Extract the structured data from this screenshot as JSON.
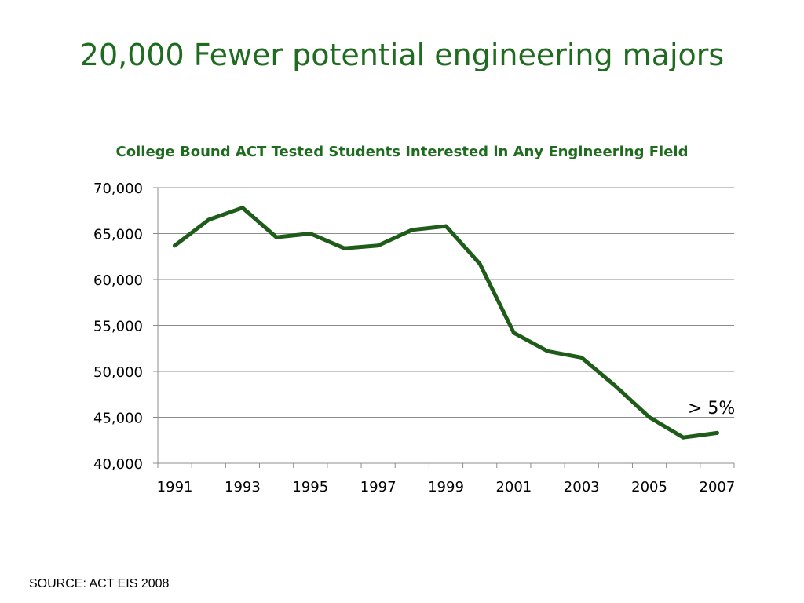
{
  "slide": {
    "title": "20,000 Fewer potential engineering majors",
    "source": "SOURCE: ACT EIS 2008"
  },
  "chart_data": {
    "type": "line",
    "title": "College Bound ACT Tested Students Interested in Any Engineering Field",
    "xlabel": "",
    "ylabel": "",
    "x": [
      1991,
      1992,
      1993,
      1994,
      1995,
      1996,
      1997,
      1998,
      1999,
      2000,
      2001,
      2002,
      2003,
      2004,
      2005,
      2006,
      2007
    ],
    "series": [
      {
        "values": [
          63700,
          66500,
          67800,
          64600,
          65000,
          63400,
          63700,
          65400,
          65800,
          61700,
          54200,
          52200,
          51500,
          48400,
          45000,
          42800,
          43300
        ],
        "color": "#1f5c1a"
      }
    ],
    "ylim": [
      40000,
      70000
    ],
    "yticks": [
      40000,
      45000,
      50000,
      55000,
      60000,
      65000,
      70000
    ],
    "ytick_labels": [
      "40,000",
      "45,000",
      "50,000",
      "55,000",
      "60,000",
      "65,000",
      "70,000"
    ],
    "xticks": [
      "1991",
      "1993",
      "1995",
      "1997",
      "1999",
      "2001",
      "2003",
      "2005",
      "2007"
    ],
    "grid": true,
    "annotation": "> 5%",
    "colors": {
      "title": "#1f6b1f",
      "line": "#1f5c1a",
      "grid": "#8c8c8c"
    }
  }
}
